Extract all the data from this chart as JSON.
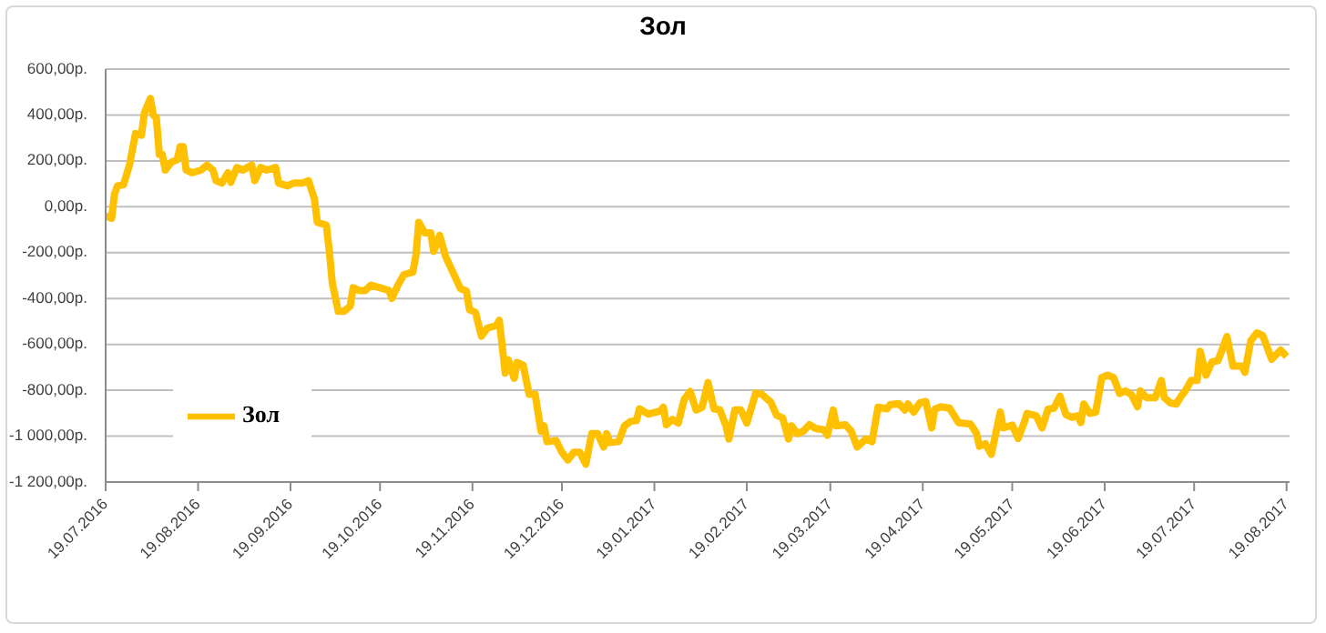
{
  "chart_data": {
    "type": "line",
    "title": "Зол",
    "x": [
      "2016-07-19",
      "2016-07-21",
      "2016-07-22",
      "2016-07-23",
      "2016-07-25",
      "2016-07-27",
      "2016-07-29",
      "2016-07-31",
      "2016-08-01",
      "2016-08-03",
      "2016-08-04",
      "2016-08-05",
      "2016-08-06",
      "2016-08-07",
      "2016-08-08",
      "2016-08-10",
      "2016-08-12",
      "2016-08-13",
      "2016-08-14",
      "2016-08-15",
      "2016-08-17",
      "2016-08-20",
      "2016-08-22",
      "2016-08-24",
      "2016-08-25",
      "2016-08-27",
      "2016-08-29",
      "2016-08-30",
      "2016-09-01",
      "2016-09-03",
      "2016-09-06",
      "2016-09-07",
      "2016-09-09",
      "2016-09-11",
      "2016-09-14",
      "2016-09-15",
      "2016-09-18",
      "2016-09-20",
      "2016-09-23",
      "2016-09-25",
      "2016-09-27",
      "2016-09-28",
      "2016-10-01",
      "2016-10-02",
      "2016-10-03",
      "2016-10-05",
      "2016-10-07",
      "2016-10-09",
      "2016-10-10",
      "2016-10-12",
      "2016-10-14",
      "2016-10-16",
      "2016-10-19",
      "2016-10-22",
      "2016-10-23",
      "2016-10-25",
      "2016-10-27",
      "2016-10-30",
      "2016-10-31",
      "2016-11-01",
      "2016-11-03",
      "2016-11-05",
      "2016-11-06",
      "2016-11-08",
      "2016-11-10",
      "2016-11-15",
      "2016-11-17",
      "2016-11-18",
      "2016-11-20",
      "2016-11-22",
      "2016-11-24",
      "2016-11-27",
      "2016-11-28",
      "2016-11-30",
      "2016-12-01",
      "2016-12-03",
      "2016-12-04",
      "2016-12-06",
      "2016-12-08",
      "2016-12-10",
      "2016-12-12",
      "2016-12-13",
      "2016-12-14",
      "2016-12-17",
      "2016-12-19",
      "2016-12-21",
      "2016-12-23",
      "2016-12-25",
      "2016-12-27",
      "2016-12-29",
      "2016-12-31",
      "2017-01-02",
      "2017-01-03",
      "2017-01-04",
      "2017-01-07",
      "2017-01-09",
      "2017-01-11",
      "2017-01-13",
      "2017-01-14",
      "2017-01-17",
      "2017-01-21",
      "2017-01-22",
      "2017-01-23",
      "2017-01-25",
      "2017-01-27",
      "2017-01-29",
      "2017-01-31",
      "2017-02-02",
      "2017-02-04",
      "2017-02-06",
      "2017-02-08",
      "2017-02-10",
      "2017-02-12",
      "2017-02-13",
      "2017-02-15",
      "2017-02-17",
      "2017-02-19",
      "2017-02-22",
      "2017-02-24",
      "2017-02-27",
      "2017-03-01",
      "2017-03-03",
      "2017-03-05",
      "2017-03-06",
      "2017-03-08",
      "2017-03-10",
      "2017-03-12",
      "2017-03-14",
      "2017-03-17",
      "2017-03-18",
      "2017-03-20",
      "2017-03-21",
      "2017-03-24",
      "2017-03-26",
      "2017-03-28",
      "2017-03-31",
      "2017-04-02",
      "2017-04-04",
      "2017-04-07",
      "2017-04-08",
      "2017-04-11",
      "2017-04-13",
      "2017-04-14",
      "2017-04-16",
      "2017-04-18",
      "2017-04-20",
      "2017-04-22",
      "2017-04-23",
      "2017-04-25",
      "2017-04-28",
      "2017-05-01",
      "2017-05-05",
      "2017-05-07",
      "2017-05-08",
      "2017-05-10",
      "2017-05-12",
      "2017-05-15",
      "2017-05-16",
      "2017-05-19",
      "2017-05-21",
      "2017-05-23",
      "2017-05-24",
      "2017-05-27",
      "2017-05-29",
      "2017-05-31",
      "2017-06-02",
      "2017-06-04",
      "2017-06-06",
      "2017-06-08",
      "2017-06-10",
      "2017-06-11",
      "2017-06-12",
      "2017-06-14",
      "2017-06-16",
      "2017-06-18",
      "2017-06-20",
      "2017-06-22",
      "2017-06-24",
      "2017-06-26",
      "2017-06-28",
      "2017-06-30",
      "2017-07-01",
      "2017-07-03",
      "2017-07-06",
      "2017-07-08",
      "2017-07-09",
      "2017-07-11",
      "2017-07-13",
      "2017-07-15",
      "2017-07-16",
      "2017-07-18",
      "2017-07-20",
      "2017-07-21",
      "2017-07-23",
      "2017-07-25",
      "2017-07-27",
      "2017-07-30",
      "2017-08-01",
      "2017-08-04",
      "2017-08-05",
      "2017-08-07",
      "2017-08-09",
      "2017-08-11",
      "2017-08-14",
      "2017-08-17",
      "2017-08-19"
    ],
    "series": [
      {
        "name": "Зол",
        "color": "#ffc000",
        "values": [
          -40,
          -50,
          57,
          91,
          96,
          182,
          319,
          312,
          410,
          472,
          399,
          388,
          228,
          228,
          160,
          194,
          205,
          262,
          262,
          160,
          148,
          160,
          182,
          160,
          114,
          103,
          148,
          107,
          171,
          160,
          182,
          114,
          171,
          160,
          171,
          103,
          91,
          103,
          103,
          114,
          34,
          -68,
          -80,
          -194,
          -331,
          -456,
          -456,
          -433,
          -353,
          -365,
          -365,
          -342,
          -353,
          -365,
          -399,
          -342,
          -296,
          -285,
          -217,
          -68,
          -114,
          -114,
          -194,
          -125,
          -217,
          -357,
          -368,
          -449,
          -460,
          -564,
          -529,
          -518,
          -495,
          -725,
          -667,
          -748,
          -679,
          -690,
          -817,
          -817,
          -978,
          -955,
          -1024,
          -1019,
          -1070,
          -1104,
          -1070,
          -1070,
          -1122,
          -989,
          -989,
          -1047,
          -989,
          -1028,
          -1024,
          -955,
          -936,
          -932,
          -881,
          -904,
          -890,
          -874,
          -950,
          -927,
          -943,
          -840,
          -805,
          -886,
          -874,
          -766,
          -881,
          -886,
          -955,
          -1012,
          -886,
          -886,
          -943,
          -812,
          -817,
          -851,
          -909,
          -920,
          -1012,
          -955,
          -989,
          -978,
          -950,
          -966,
          -973,
          -996,
          -886,
          -955,
          -950,
          -978,
          -1047,
          -1012,
          -1024,
          -874,
          -881,
          -863,
          -858,
          -886,
          -860,
          -895,
          -855,
          -849,
          -964,
          -883,
          -872,
          -878,
          -941,
          -947,
          -987,
          -1044,
          -1033,
          -1079,
          -895,
          -964,
          -952,
          -1010,
          -941,
          -901,
          -911,
          -964,
          -883,
          -878,
          -826,
          -906,
          -918,
          -911,
          -941,
          -860,
          -901,
          -895,
          -745,
          -734,
          -745,
          -814,
          -803,
          -819,
          -872,
          -803,
          -832,
          -832,
          -757,
          -832,
          -855,
          -860,
          -819,
          -803,
          -757,
          -757,
          -630,
          -734,
          -676,
          -671,
          -566,
          -694,
          -694,
          -722,
          -584,
          -550,
          -561,
          -665,
          -625,
          -653
        ]
      }
    ],
    "xlim": [
      "2016-07-19",
      "2017-08-20"
    ],
    "xticks": [
      {
        "value": "2016-07-19",
        "label": "19.07.2016"
      },
      {
        "value": "2016-08-19",
        "label": "19.08.2016"
      },
      {
        "value": "2016-09-19",
        "label": "19.09.2016"
      },
      {
        "value": "2016-10-19",
        "label": "19.10.2016"
      },
      {
        "value": "2016-11-19",
        "label": "19.11.2016"
      },
      {
        "value": "2016-12-19",
        "label": "19.12.2016"
      },
      {
        "value": "2017-01-19",
        "label": "19.01.2017"
      },
      {
        "value": "2017-02-19",
        "label": "19.02.2017"
      },
      {
        "value": "2017-03-19",
        "label": "19.03.2017"
      },
      {
        "value": "2017-04-19",
        "label": "19.04.2017"
      },
      {
        "value": "2017-05-19",
        "label": "19.05.2017"
      },
      {
        "value": "2017-06-19",
        "label": "19.06.2017"
      },
      {
        "value": "2017-07-19",
        "label": "19.07.2017"
      },
      {
        "value": "2017-08-19",
        "label": "19.08.2017"
      }
    ],
    "ylim": [
      -1200,
      600
    ],
    "yticks": [
      {
        "value": -1200,
        "label": "-1 200,00р."
      },
      {
        "value": -1000,
        "label": "-1 000,00р."
      },
      {
        "value": -800,
        "label": "-800,00р."
      },
      {
        "value": -600,
        "label": "-600,00р."
      },
      {
        "value": -400,
        "label": "-400,00р."
      },
      {
        "value": -200,
        "label": "-200,00р."
      },
      {
        "value": 0,
        "label": "0,00р."
      },
      {
        "value": 200,
        "label": "200,00р."
      },
      {
        "value": 400,
        "label": "400,00р."
      },
      {
        "value": 600,
        "label": "600,00р."
      }
    ],
    "grid": "y",
    "legend": "left"
  }
}
